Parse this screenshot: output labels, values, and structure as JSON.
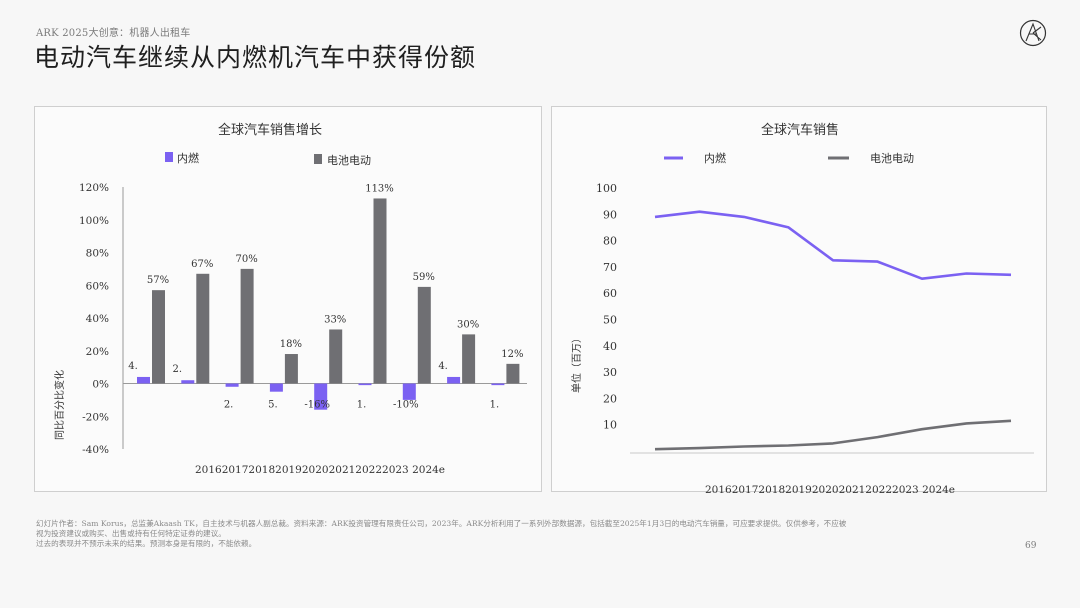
{
  "header": {
    "subtitle": "ARK 2025大创意：机器人出租车",
    "title": "电动汽车继续从内燃机汽车中获得份额"
  },
  "logo": {
    "icon": "ark-logo-icon"
  },
  "colors": {
    "ice": "#7b61f2",
    "ev": "#6f6f73",
    "axis": "#9a9a9a",
    "text": "#333333"
  },
  "chart_data": [
    {
      "type": "bar",
      "title": "全球汽车销售增长",
      "categories": [
        "2016",
        "2017",
        "2018",
        "2019",
        "2020",
        "2021",
        "2022",
        "2023",
        "2024e"
      ],
      "category_axis_text": "20162017201820192020202120222023 2024e",
      "series": [
        {
          "name": "内燃",
          "values": [
            4,
            2,
            -2,
            -5,
            -16,
            -1,
            -10,
            4,
            -1
          ],
          "labels": [
            "4.",
            "2.",
            "2.",
            "5.",
            "-16%",
            "1.",
            "-10%",
            "4.",
            "1."
          ]
        },
        {
          "name": "电池电动",
          "values": [
            57,
            67,
            70,
            18,
            33,
            113,
            59,
            30,
            12
          ],
          "labels": [
            "57%",
            "67%",
            "70%",
            "18%",
            "33%",
            "113%",
            "59%",
            "30%",
            "12%"
          ]
        }
      ],
      "ylabel": "同比百分比变化",
      "ylim": [
        -40,
        120
      ],
      "yticks": [
        "120%",
        "100%",
        "80%",
        "60%",
        "40%",
        "20%",
        "0%",
        "-20%",
        "-40%"
      ],
      "legend": "top",
      "grid": false
    },
    {
      "type": "line",
      "title": "全球汽车销售",
      "x": [
        "2016",
        "2017",
        "2018",
        "2019",
        "2020",
        "2021",
        "2022",
        "2023",
        "2024e"
      ],
      "category_axis_text": "20162017201820192020202120222023 2024e",
      "series": [
        {
          "name": "内燃",
          "values": [
            89,
            91,
            89,
            85,
            72.5,
            72,
            65.5,
            67.5,
            67
          ]
        },
        {
          "name": "电池电动",
          "values": [
            0.7,
            1.1,
            1.7,
            2.1,
            2.9,
            5.3,
            8.3,
            10.5,
            11.5
          ]
        }
      ],
      "ylabel": "单位（百万）",
      "ylim": [
        0,
        100
      ],
      "yticks": [
        "100",
        "90",
        "80",
        "70",
        "60",
        "50",
        "40",
        "30",
        "20",
        "10"
      ],
      "legend": "top",
      "grid": false
    }
  ],
  "footer": {
    "line1": "幻灯片作者：Sam Korus，总监兼Akaash TK，自主技术与机器人副总裁。资料来源：ARK投资管理有限责任公司，2023年。ARK分析利用了一系列外部数据源，包括截至2025年1月3日的电动汽车销量，可应要求提供。仅供参考，不应被",
    "line2": "视为投资建议或购买、出售或持有任何特定证券的建议。",
    "line3": "过去的表现并不预示未来的结果。预测本身是有限的，不能依赖。",
    "page": "69"
  }
}
